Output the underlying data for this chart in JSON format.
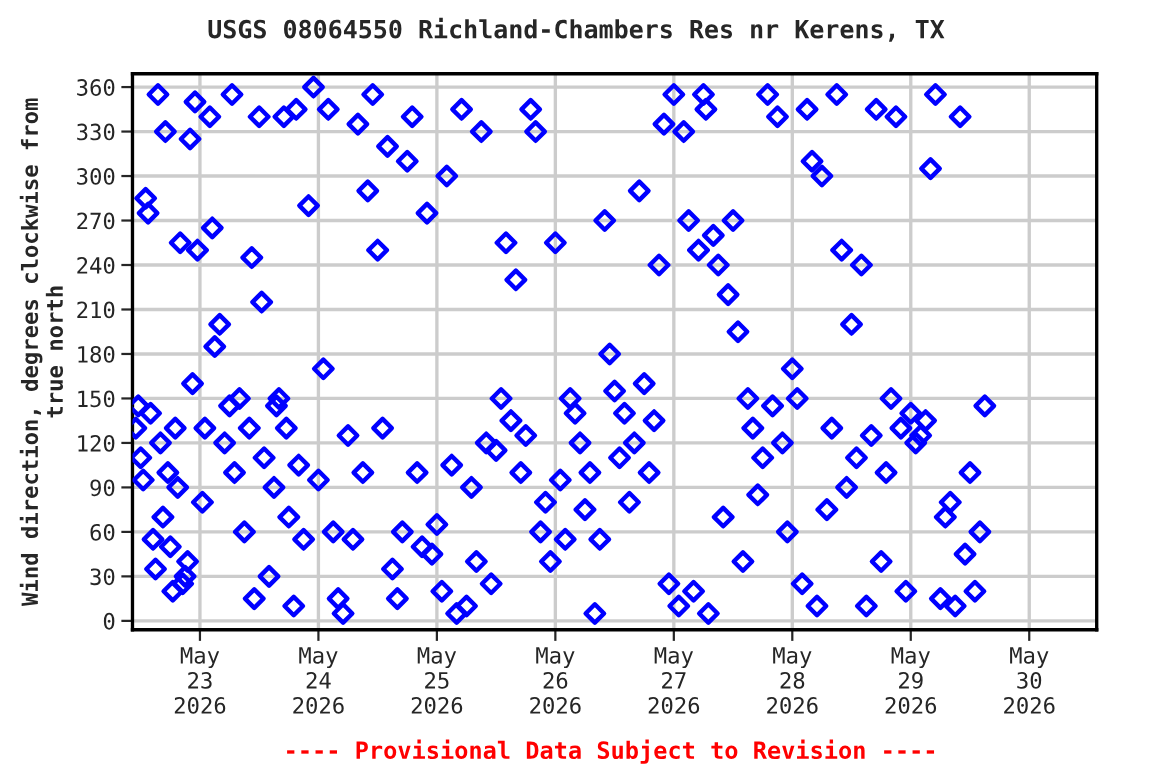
{
  "chart_data": {
    "type": "scatter",
    "title": "USGS 08064550 Richland-Chambers Res nr Kerens, TX",
    "ylabel": "Wind direction, degrees clockwise from\ntrue north",
    "annotations": [
      "---- Provisional Data Subject to Revision ----"
    ],
    "marker": "diamond",
    "grid": true,
    "xlim": [
      "2026-05-22T10:20",
      "2026-05-30T13:40"
    ],
    "xticks": [
      {
        "value": "2026-05-23",
        "label": "May\n23\n2026"
      },
      {
        "value": "2026-05-24",
        "label": "May\n24\n2026"
      },
      {
        "value": "2026-05-25",
        "label": "May\n25\n2026"
      },
      {
        "value": "2026-05-26",
        "label": "May\n26\n2026"
      },
      {
        "value": "2026-05-27",
        "label": "May\n27\n2026"
      },
      {
        "value": "2026-05-28",
        "label": "May\n28\n2026"
      },
      {
        "value": "2026-05-29",
        "label": "May\n29\n2026"
      },
      {
        "value": "2026-05-30",
        "label": "May\n30\n2026"
      }
    ],
    "ylim": [
      -6,
      369
    ],
    "yticks": [
      0,
      30,
      60,
      90,
      120,
      150,
      180,
      210,
      240,
      270,
      300,
      330,
      360
    ],
    "series": [
      {
        "color": "#0000ff",
        "x": [
          "2026-05-22T11:00",
          "2026-05-22T11:30",
          "2026-05-22T12:00",
          "2026-05-22T12:30",
          "2026-05-22T13:00",
          "2026-05-22T13:30",
          "2026-05-22T14:00",
          "2026-05-22T14:30",
          "2026-05-22T15:00",
          "2026-05-22T15:30",
          "2026-05-22T16:00",
          "2026-05-22T16:30",
          "2026-05-22T17:00",
          "2026-05-22T17:30",
          "2026-05-22T18:00",
          "2026-05-22T18:30",
          "2026-05-22T19:00",
          "2026-05-22T19:30",
          "2026-05-22T20:00",
          "2026-05-22T20:30",
          "2026-05-22T21:00",
          "2026-05-22T21:30",
          "2026-05-22T22:00",
          "2026-05-22T22:30",
          "2026-05-22T23:00",
          "2026-05-22T23:30",
          "2026-05-23T00:30",
          "2026-05-23T01:00",
          "2026-05-23T02:00",
          "2026-05-23T02:30",
          "2026-05-23T03:00",
          "2026-05-23T04:00",
          "2026-05-23T05:00",
          "2026-05-23T06:00",
          "2026-05-23T06:30",
          "2026-05-23T07:00",
          "2026-05-23T08:00",
          "2026-05-23T09:00",
          "2026-05-23T10:00",
          "2026-05-23T10:30",
          "2026-05-23T11:00",
          "2026-05-23T12:00",
          "2026-05-23T12:30",
          "2026-05-23T13:00",
          "2026-05-23T14:00",
          "2026-05-23T15:00",
          "2026-05-23T15:30",
          "2026-05-23T16:00",
          "2026-05-23T17:00",
          "2026-05-23T17:30",
          "2026-05-23T18:00",
          "2026-05-23T19:00",
          "2026-05-23T19:30",
          "2026-05-23T20:00",
          "2026-05-23T21:00",
          "2026-05-23T22:00",
          "2026-05-23T23:00",
          "2026-05-24T00:00",
          "2026-05-24T01:00",
          "2026-05-24T02:00",
          "2026-05-24T03:00",
          "2026-05-24T04:00",
          "2026-05-24T05:00",
          "2026-05-24T06:00",
          "2026-05-24T07:00",
          "2026-05-24T08:00",
          "2026-05-24T09:00",
          "2026-05-24T10:00",
          "2026-05-24T11:00",
          "2026-05-24T12:00",
          "2026-05-24T13:00",
          "2026-05-24T14:00",
          "2026-05-24T15:00",
          "2026-05-24T16:00",
          "2026-05-24T17:00",
          "2026-05-24T18:00",
          "2026-05-24T19:00",
          "2026-05-24T20:00",
          "2026-05-24T21:00",
          "2026-05-24T22:00",
          "2026-05-24T23:00",
          "2026-05-25T00:00",
          "2026-05-25T01:00",
          "2026-05-25T02:00",
          "2026-05-25T03:00",
          "2026-05-25T04:00",
          "2026-05-25T05:00",
          "2026-05-25T06:00",
          "2026-05-25T07:00",
          "2026-05-25T08:00",
          "2026-05-25T09:00",
          "2026-05-25T10:00",
          "2026-05-25T11:00",
          "2026-05-25T12:00",
          "2026-05-25T13:00",
          "2026-05-25T14:00",
          "2026-05-25T15:00",
          "2026-05-25T16:00",
          "2026-05-25T17:00",
          "2026-05-25T18:00",
          "2026-05-25T19:00",
          "2026-05-25T20:00",
          "2026-05-25T21:00",
          "2026-05-25T22:00",
          "2026-05-25T23:00",
          "2026-05-26T00:00",
          "2026-05-26T01:00",
          "2026-05-26T02:00",
          "2026-05-26T03:00",
          "2026-05-26T04:00",
          "2026-05-26T05:00",
          "2026-05-26T06:00",
          "2026-05-26T07:00",
          "2026-05-26T08:00",
          "2026-05-26T09:00",
          "2026-05-26T10:00",
          "2026-05-26T11:00",
          "2026-05-26T12:00",
          "2026-05-26T13:00",
          "2026-05-26T14:00",
          "2026-05-26T15:00",
          "2026-05-26T16:00",
          "2026-05-26T17:00",
          "2026-05-26T18:00",
          "2026-05-26T19:00",
          "2026-05-26T20:00",
          "2026-05-26T21:00",
          "2026-05-26T22:00",
          "2026-05-26T23:00",
          "2026-05-27T00:00",
          "2026-05-27T01:00",
          "2026-05-27T02:00",
          "2026-05-27T03:00",
          "2026-05-27T04:00",
          "2026-05-27T05:00",
          "2026-05-27T06:00",
          "2026-05-27T06:30",
          "2026-05-27T07:00",
          "2026-05-27T08:00",
          "2026-05-27T09:00",
          "2026-05-27T10:00",
          "2026-05-27T11:00",
          "2026-05-27T12:00",
          "2026-05-27T13:00",
          "2026-05-27T14:00",
          "2026-05-27T15:00",
          "2026-05-27T16:00",
          "2026-05-27T17:00",
          "2026-05-27T18:00",
          "2026-05-27T19:00",
          "2026-05-27T20:00",
          "2026-05-27T21:00",
          "2026-05-27T22:00",
          "2026-05-27T23:00",
          "2026-05-28T00:00",
          "2026-05-28T01:00",
          "2026-05-28T02:00",
          "2026-05-28T03:00",
          "2026-05-28T04:00",
          "2026-05-28T05:00",
          "2026-05-28T06:00",
          "2026-05-28T07:00",
          "2026-05-28T08:00",
          "2026-05-28T09:00",
          "2026-05-28T10:00",
          "2026-05-28T11:00",
          "2026-05-28T12:00",
          "2026-05-28T13:00",
          "2026-05-28T14:00",
          "2026-05-28T15:00",
          "2026-05-28T16:00",
          "2026-05-28T17:00",
          "2026-05-28T18:00",
          "2026-05-28T19:00",
          "2026-05-28T20:00",
          "2026-05-28T21:00",
          "2026-05-28T22:00",
          "2026-05-28T23:00",
          "2026-05-29T00:00",
          "2026-05-29T01:00",
          "2026-05-29T02:00",
          "2026-05-29T03:00",
          "2026-05-29T04:00",
          "2026-05-29T05:00",
          "2026-05-29T06:00",
          "2026-05-29T07:00",
          "2026-05-29T08:00",
          "2026-05-29T09:00",
          "2026-05-29T10:00",
          "2026-05-29T11:00",
          "2026-05-29T12:00",
          "2026-05-29T13:00",
          "2026-05-29T14:00",
          "2026-05-29T15:00"
        ],
        "values": [
          130,
          145,
          110,
          95,
          285,
          275,
          140,
          55,
          35,
          355,
          120,
          70,
          330,
          100,
          50,
          20,
          130,
          90,
          255,
          25,
          30,
          40,
          325,
          160,
          350,
          250,
          80,
          130,
          340,
          265,
          185,
          200,
          120,
          145,
          355,
          100,
          150,
          60,
          130,
          245,
          15,
          340,
          215,
          110,
          30,
          90,
          145,
          150,
          340,
          130,
          70,
          10,
          345,
          105,
          55,
          280,
          360,
          95,
          170,
          345,
          60,
          15,
          5,
          125,
          55,
          335,
          100,
          290,
          355,
          250,
          130,
          320,
          35,
          15,
          60,
          310,
          340,
          100,
          50,
          275,
          45,
          65,
          20,
          300,
          105,
          5,
          345,
          10,
          90,
          40,
          330,
          120,
          25,
          115,
          150,
          255,
          135,
          230,
          100,
          125,
          345,
          330,
          60,
          80,
          40,
          255,
          95,
          55,
          150,
          140,
          120,
          75,
          100,
          5,
          55,
          270,
          180,
          155,
          110,
          140,
          80,
          120,
          290,
          160,
          100,
          135,
          240,
          335,
          25,
          355,
          10,
          330,
          270,
          20,
          250,
          355,
          345,
          5,
          260,
          240,
          70,
          220,
          270,
          195,
          40,
          150,
          130,
          85,
          110,
          355,
          145,
          340,
          120,
          60,
          170,
          150,
          25,
          345,
          310,
          10,
          300,
          75,
          130,
          355,
          250,
          90,
          200,
          110,
          240,
          10,
          125,
          345,
          40,
          100,
          150,
          340,
          130,
          20,
          140,
          120,
          125,
          135,
          305,
          355,
          15,
          70,
          80,
          10,
          340,
          45,
          100,
          20,
          60,
          145
        ]
      }
    ]
  }
}
